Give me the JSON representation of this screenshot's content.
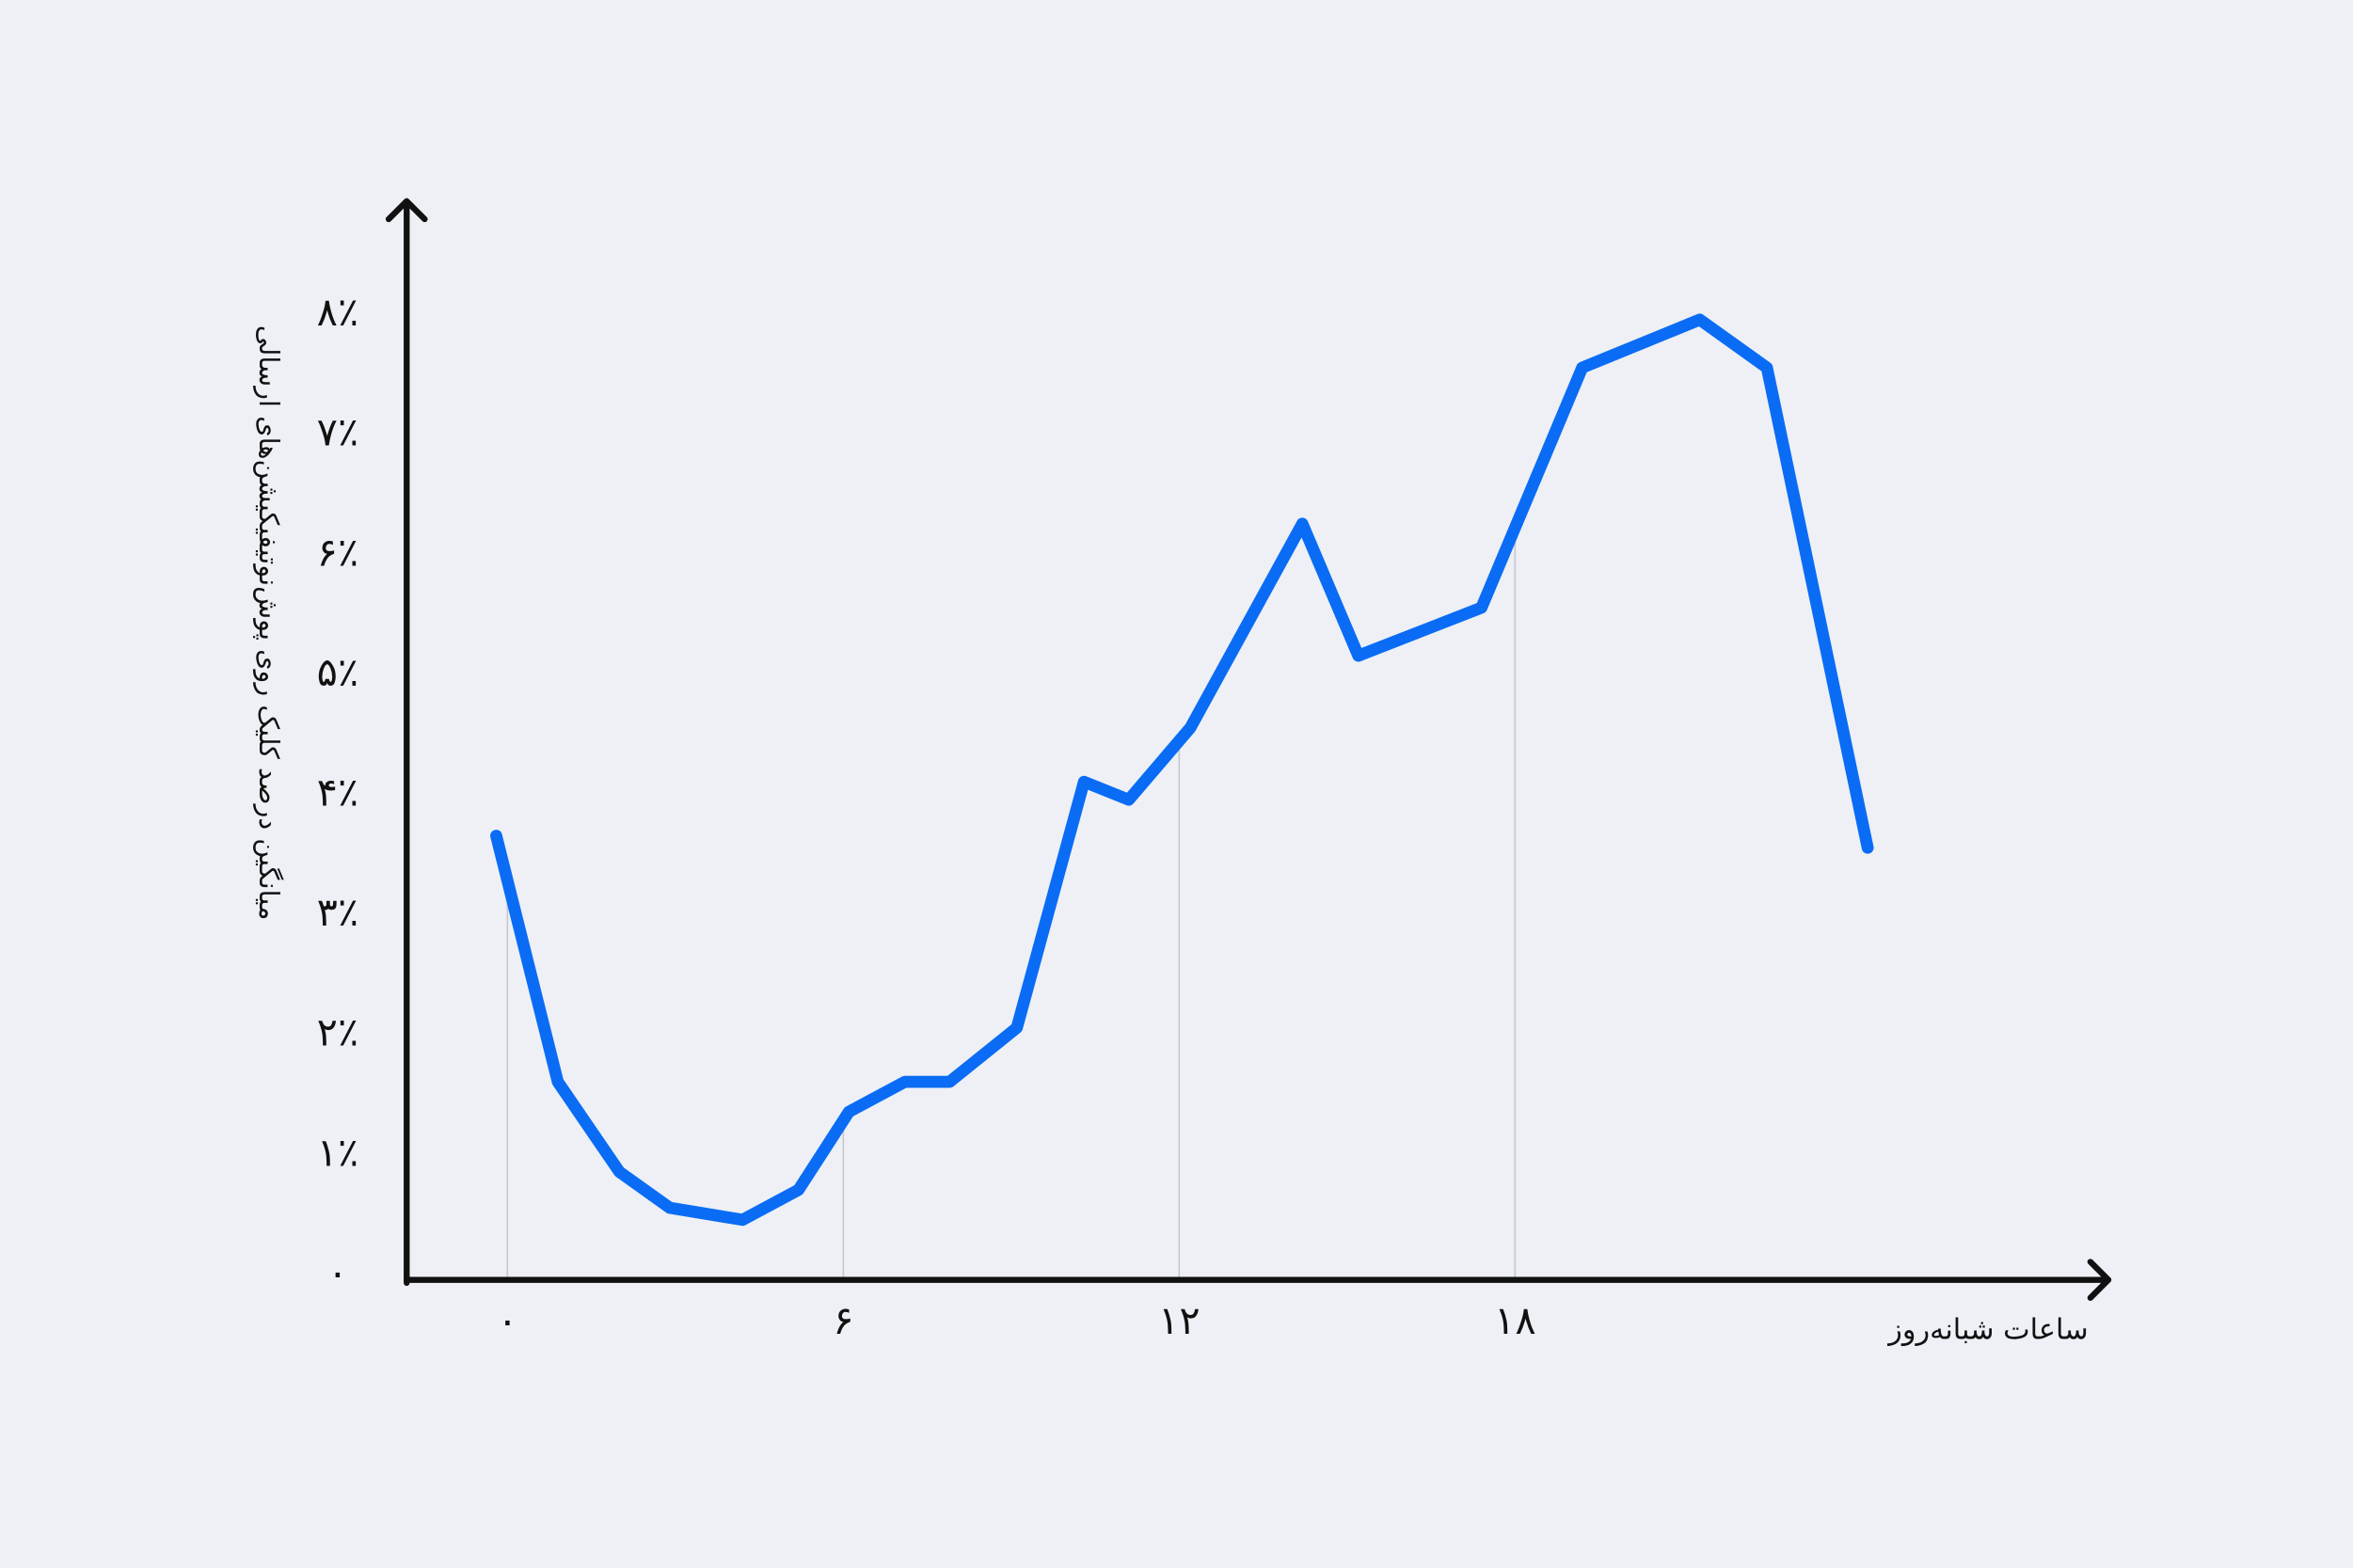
{
  "chart_data": {
    "type": "line",
    "x_label": "ساعات شبانه‌روز",
    "y_label": "میانگین درصد کلیک روی پوش‌نوتیفیکیشن‌های ارسالی",
    "x": [
      -0.2,
      0.9,
      2.0,
      2.9,
      4.2,
      5.2,
      6.1,
      7.1,
      7.9,
      9.1,
      10.3,
      11.1,
      12.2,
      14.2,
      15.2,
      17.4,
      19.2,
      21.3,
      22.5,
      24.3
    ],
    "values": [
      3.7,
      1.65,
      0.9,
      0.6,
      0.5,
      0.75,
      1.4,
      1.65,
      1.65,
      2.1,
      4.15,
      4.0,
      4.6,
      6.3,
      5.2,
      5.6,
      7.6,
      8.0,
      7.6,
      3.6
    ],
    "color": "#0a6cf5",
    "xlim": [
      -1.8,
      28.6
    ],
    "xticks": [
      {
        "value": 0,
        "label": "۰"
      },
      {
        "value": 6,
        "label": "۶"
      },
      {
        "value": 12,
        "label": "۱۲"
      },
      {
        "value": 18,
        "label": "۱۸"
      }
    ],
    "ylim": [
      0,
      9
    ],
    "yticks": [
      {
        "value": 0,
        "label": "۰"
      },
      {
        "value": 1,
        "label": "۱٪"
      },
      {
        "value": 2,
        "label": "۲٪"
      },
      {
        "value": 3,
        "label": "۳٪"
      },
      {
        "value": 4,
        "label": "۴٪"
      },
      {
        "value": 5,
        "label": "۵٪"
      },
      {
        "value": 6,
        "label": "۶٪"
      },
      {
        "value": 7,
        "label": "۷٪"
      },
      {
        "value": 8,
        "label": "۸٪"
      }
    ],
    "grid": true
  }
}
